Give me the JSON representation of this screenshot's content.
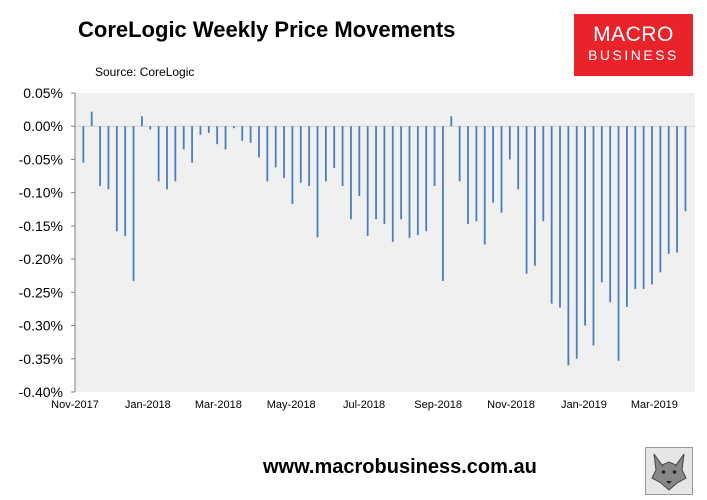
{
  "header": {
    "title": "CoreLogic Weekly Price Movements",
    "source": "Source: CoreLogic"
  },
  "logo": {
    "line1": "MACRO",
    "line2": "BUSINESS",
    "color": "#e8232a"
  },
  "footer": {
    "url": "www.macrobusiness.com.au"
  },
  "colors": {
    "bar": "#4a7ebb",
    "plot_background": "#f0f0f0",
    "page_background": "#ffffff"
  },
  "icons": {
    "mascot": "wolf-icon"
  },
  "chart_data": {
    "type": "bar",
    "title": "CoreLogic Weekly Price Movements",
    "ylim": [
      -0.4,
      0.05
    ],
    "y_ticks": [
      "0.05%",
      "0.00%",
      "-0.05%",
      "-0.10%",
      "-0.15%",
      "-0.20%",
      "-0.25%",
      "-0.30%",
      "-0.35%",
      "-0.40%"
    ],
    "y_tick_values": [
      0.05,
      0.0,
      -0.05,
      -0.1,
      -0.15,
      -0.2,
      -0.25,
      -0.3,
      -0.35,
      -0.4
    ],
    "x_range": [
      "2017-11-01",
      "2019-04-04"
    ],
    "x_ticks": [
      {
        "label": "Nov-2017",
        "date": "2017-11-01"
      },
      {
        "label": "Jan-2018",
        "date": "2018-01-01"
      },
      {
        "label": "Mar-2018",
        "date": "2018-03-01"
      },
      {
        "label": "May-2018",
        "date": "2018-05-01"
      },
      {
        "label": "Jul-2018",
        "date": "2018-07-01"
      },
      {
        "label": "Sep-2018",
        "date": "2018-09-01"
      },
      {
        "label": "Nov-2018",
        "date": "2018-11-01"
      },
      {
        "label": "Jan-2019",
        "date": "2019-01-01"
      },
      {
        "label": "Mar-2019",
        "date": "2019-03-01"
      }
    ],
    "grid": false,
    "legend": "none",
    "series": [
      {
        "dates": [
          "2017-11-08",
          "2017-11-15",
          "2017-11-22",
          "2017-11-29",
          "2017-12-06",
          "2017-12-13",
          "2017-12-20",
          "2017-12-27",
          "2018-01-03",
          "2018-01-10",
          "2018-01-17",
          "2018-01-24",
          "2018-01-31",
          "2018-02-07",
          "2018-02-14",
          "2018-02-21",
          "2018-02-28",
          "2018-03-07",
          "2018-03-14",
          "2018-03-21",
          "2018-03-28",
          "2018-04-04",
          "2018-04-11",
          "2018-04-18",
          "2018-04-25",
          "2018-05-02",
          "2018-05-09",
          "2018-05-16",
          "2018-05-23",
          "2018-05-30",
          "2018-06-06",
          "2018-06-13",
          "2018-06-20",
          "2018-06-27",
          "2018-07-04",
          "2018-07-11",
          "2018-07-18",
          "2018-07-25",
          "2018-08-01",
          "2018-08-08",
          "2018-08-15",
          "2018-08-22",
          "2018-08-29",
          "2018-09-05",
          "2018-09-12",
          "2018-09-19",
          "2018-09-26",
          "2018-10-03",
          "2018-10-10",
          "2018-10-17",
          "2018-10-24",
          "2018-10-31",
          "2018-11-07",
          "2018-11-14",
          "2018-11-21",
          "2018-11-28",
          "2018-12-05",
          "2018-12-12",
          "2018-12-19",
          "2018-12-26",
          "2019-01-02",
          "2019-01-09",
          "2019-01-16",
          "2019-01-23",
          "2019-01-30",
          "2019-02-06",
          "2019-02-13",
          "2019-02-20",
          "2019-02-27",
          "2019-03-06",
          "2019-03-13",
          "2019-03-20",
          "2019-03-27"
        ],
        "values": [
          -0.055,
          0.022,
          -0.09,
          -0.095,
          -0.158,
          -0.165,
          -0.233,
          0.015,
          -0.005,
          -0.083,
          -0.095,
          -0.083,
          -0.035,
          -0.055,
          -0.013,
          -0.01,
          -0.027,
          -0.035,
          -0.003,
          -0.022,
          -0.025,
          -0.047,
          -0.083,
          -0.062,
          -0.078,
          -0.117,
          -0.085,
          -0.09,
          -0.167,
          -0.083,
          -0.063,
          -0.09,
          -0.14,
          -0.105,
          -0.165,
          -0.14,
          -0.147,
          -0.174,
          -0.14,
          -0.168,
          -0.164,
          -0.158,
          -0.09,
          -0.233,
          0.015,
          -0.083,
          -0.147,
          -0.143,
          -0.178,
          -0.115,
          -0.13,
          -0.05,
          -0.095,
          -0.222,
          -0.21,
          -0.143,
          -0.267,
          -0.273,
          -0.36,
          -0.35,
          -0.3,
          -0.33,
          -0.235,
          -0.265,
          -0.353,
          -0.272,
          -0.245,
          -0.245,
          -0.238,
          -0.22,
          -0.192,
          -0.19,
          -0.128
        ]
      }
    ]
  }
}
